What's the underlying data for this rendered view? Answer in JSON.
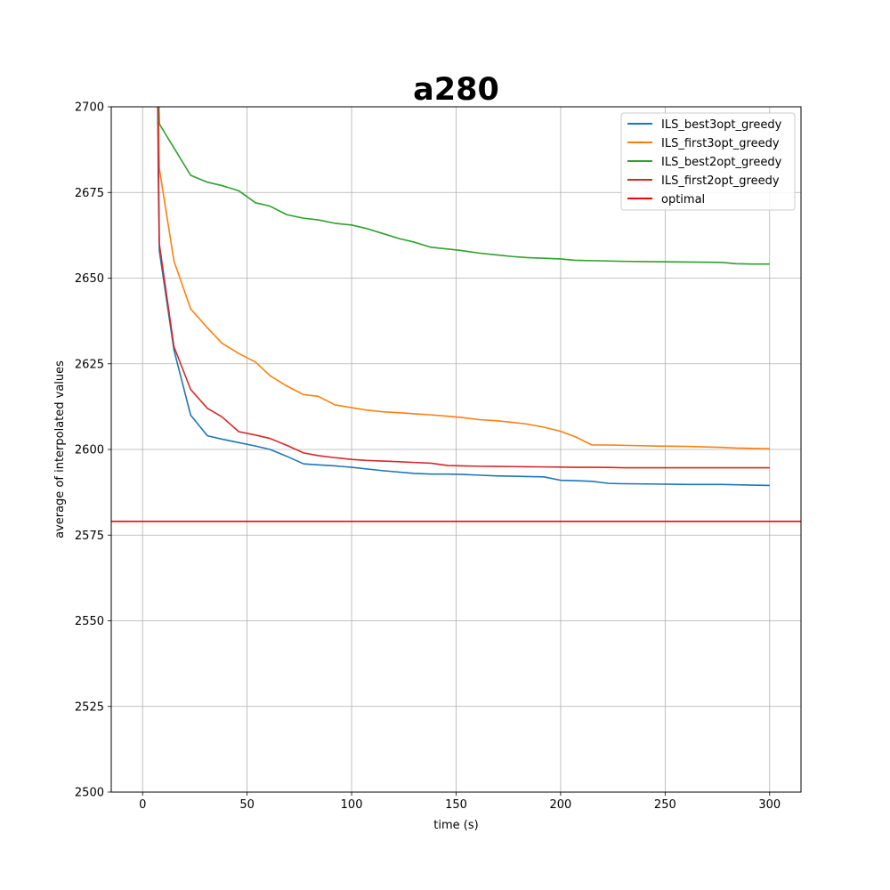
{
  "chart_data": {
    "type": "line",
    "title": "a280",
    "xlabel": "time (s)",
    "ylabel": "average of interpolated values",
    "xlim": [
      -15,
      315
    ],
    "ylim": [
      2500,
      2700
    ],
    "xticks": [
      "0",
      "50",
      "100",
      "150",
      "200",
      "250",
      "300"
    ],
    "yticks": [
      "2500",
      "2525",
      "2550",
      "2575",
      "2600",
      "2625",
      "2650",
      "2675",
      "2700"
    ],
    "grid": true,
    "legend_position": "top-right",
    "series": [
      {
        "name": "ILS_best3opt_greedy",
        "color": "#1f77b4",
        "x": [
          7,
          7.5,
          8,
          15,
          23,
          31,
          38,
          46,
          54,
          61,
          69,
          77,
          84,
          92,
          100,
          115,
          130,
          138,
          146,
          153,
          161,
          169,
          177,
          184,
          192,
          200,
          207,
          215,
          223,
          230,
          246,
          261,
          277,
          292,
          300
        ],
        "y": [
          2720,
          2680,
          2658,
          2629,
          2610,
          2604,
          2603,
          2602,
          2601,
          2600,
          2598,
          2595.8,
          2595.5,
          2595.2,
          2594.8,
          2593.8,
          2593,
          2592.8,
          2592.8,
          2592.7,
          2592.5,
          2592.3,
          2592.2,
          2592.1,
          2592,
          2591,
          2590.9,
          2590.7,
          2590.1,
          2590,
          2589.9,
          2589.8,
          2589.8,
          2589.6,
          2589.5
        ]
      },
      {
        "name": "ILS_first3opt_greedy",
        "color": "#ff7f0e",
        "x": [
          7,
          7.5,
          8,
          15,
          23,
          31,
          38,
          46,
          54,
          61,
          69,
          77,
          84,
          92,
          100,
          107,
          115,
          123,
          130,
          138,
          146,
          153,
          161,
          169,
          177,
          184,
          192,
          200,
          207,
          215,
          223,
          230,
          246,
          261,
          277,
          284,
          292,
          300
        ],
        "y": [
          2720,
          2700,
          2682,
          2655,
          2641,
          2635.5,
          2631,
          2628,
          2625.5,
          2621.5,
          2618.5,
          2616,
          2615.5,
          2613,
          2612.2,
          2611.5,
          2611,
          2610.7,
          2610.4,
          2610.1,
          2609.7,
          2609.3,
          2608.7,
          2608.4,
          2607.9,
          2607.4,
          2606.5,
          2605.3,
          2603.7,
          2601.3,
          2601.3,
          2601.2,
          2601,
          2600.9,
          2600.6,
          2600.4,
          2600.3,
          2600.2
        ]
      },
      {
        "name": "ILS_best2opt_greedy",
        "color": "#2ca02c",
        "x": [
          7,
          8,
          15,
          23,
          31,
          38,
          46,
          54,
          61,
          69,
          77,
          84,
          92,
          100,
          107,
          115,
          123,
          130,
          138,
          146,
          153,
          161,
          169,
          177,
          184,
          192,
          200,
          207,
          215,
          223,
          230,
          246,
          261,
          277,
          284,
          292,
          300
        ],
        "y": [
          2720,
          2695,
          2688,
          2680,
          2678,
          2677,
          2675.5,
          2672,
          2671,
          2668.5,
          2667.5,
          2667,
          2666,
          2665.5,
          2664.5,
          2663,
          2661.5,
          2660.5,
          2659,
          2658.5,
          2658,
          2657.3,
          2656.8,
          2656.3,
          2656,
          2655.8,
          2655.6,
          2655.2,
          2655.1,
          2655,
          2654.9,
          2654.8,
          2654.7,
          2654.6,
          2654.2,
          2654.1,
          2654.1
        ]
      },
      {
        "name": "ILS_first2opt_greedy",
        "color": "#d62728",
        "x": [
          7,
          7.5,
          8,
          15,
          23,
          31,
          38,
          46,
          54,
          61,
          69,
          77,
          84,
          92,
          100,
          107,
          115,
          123,
          130,
          138,
          146,
          153,
          161,
          169,
          177,
          184,
          192,
          200,
          207,
          215,
          223,
          230,
          246,
          261,
          277,
          284,
          292,
          300
        ],
        "y": [
          2720,
          2690,
          2660,
          2630,
          2617.5,
          2612,
          2609.5,
          2605.2,
          2604.2,
          2603.2,
          2601.2,
          2599,
          2598.2,
          2597.6,
          2597.1,
          2596.8,
          2596.6,
          2596.4,
          2596.2,
          2596,
          2595.3,
          2595.2,
          2595.1,
          2595.05,
          2595,
          2594.95,
          2594.9,
          2594.85,
          2594.8,
          2594.8,
          2594.75,
          2594.65,
          2594.65,
          2594.65,
          2594.65,
          2594.65,
          2594.65,
          2594.65
        ]
      },
      {
        "name": "optimal",
        "color": "#ff0000",
        "hline": 2579
      }
    ]
  }
}
